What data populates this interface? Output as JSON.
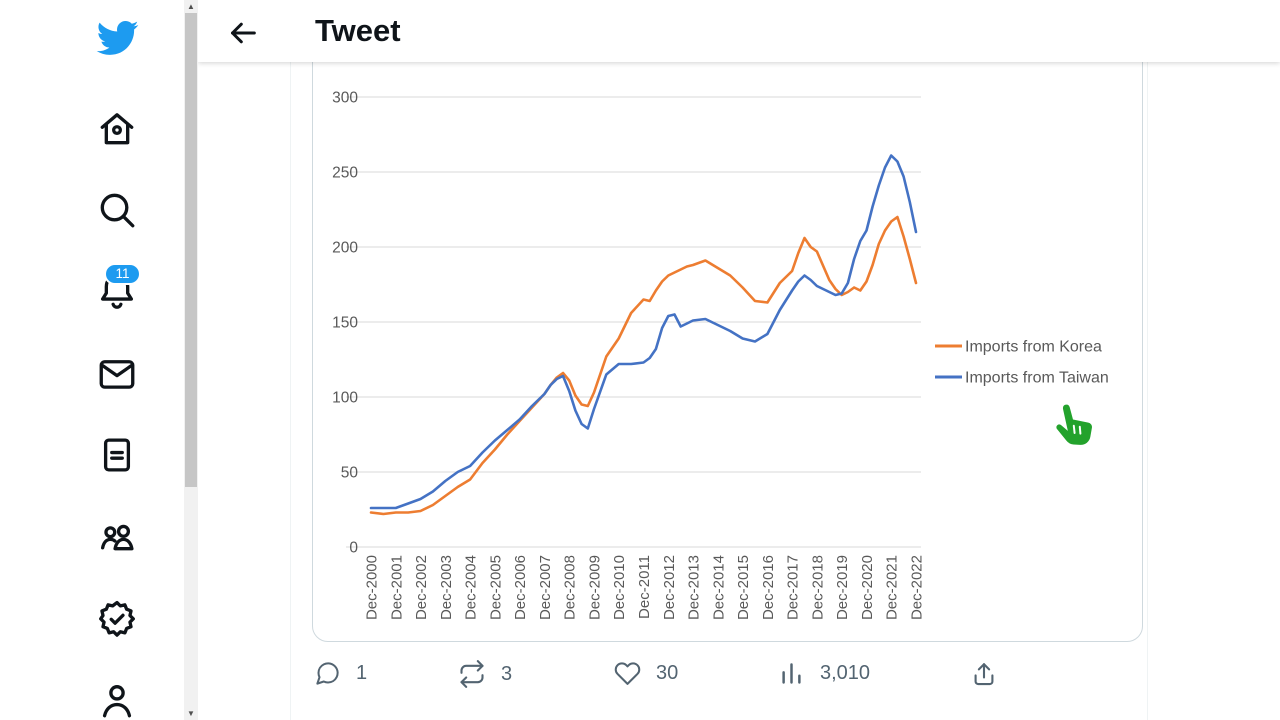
{
  "app": {
    "brand_icon": "twitter-bird-icon",
    "accent_color": "#1d9bf0"
  },
  "header": {
    "title": "Tweet",
    "back_icon": "left-arrow-icon"
  },
  "sidebar": {
    "notification_badge": "11",
    "items": [
      {
        "icon": "home-icon"
      },
      {
        "icon": "search-icon"
      },
      {
        "icon": "notifications-bell-icon"
      },
      {
        "icon": "messages-envelope-icon"
      },
      {
        "icon": "lists-icon"
      },
      {
        "icon": "communities-people-icon"
      },
      {
        "icon": "verified-badge-icon"
      },
      {
        "icon": "profile-person-icon"
      }
    ]
  },
  "tweet": {
    "media": {
      "type": "line-chart-image"
    },
    "engagement": {
      "replies": "1",
      "retweets": "3",
      "likes": "30",
      "views": "3,010"
    }
  },
  "cursor": {
    "type": "green-pointing-hand-cursor",
    "color": "#23A22C"
  },
  "chart_data": {
    "type": "line",
    "title": "",
    "xlabel": "",
    "ylabel": "",
    "ylim": [
      0,
      300
    ],
    "y_ticks": [
      0,
      50,
      100,
      150,
      200,
      250,
      300
    ],
    "grid": "horizontal",
    "legend_position": "right",
    "x_tick_interval_months": 12,
    "x_tick_labels": [
      "Dec-2000",
      "Dec-2001",
      "Dec-2002",
      "Dec-2003",
      "Dec-2004",
      "Dec-2005",
      "Dec-2006",
      "Dec-2007",
      "Dec-2008",
      "Dec-2009",
      "Dec-2010",
      "Dec-2011",
      "Dec-2012",
      "Dec-2013",
      "Dec-2014",
      "Dec-2015",
      "Dec-2016",
      "Dec-2017",
      "Dec-2018",
      "Dec-2019",
      "Dec-2020",
      "Dec-2021",
      "Dec-2022"
    ],
    "x_months": [
      0,
      6,
      12,
      18,
      24,
      30,
      36,
      42,
      48,
      54,
      60,
      66,
      72,
      78,
      84,
      87,
      90,
      93,
      96,
      99,
      102,
      105,
      108,
      114,
      120,
      126,
      132,
      135,
      138,
      141,
      144,
      147,
      150,
      153,
      156,
      162,
      168,
      174,
      180,
      186,
      192,
      198,
      204,
      207,
      210,
      213,
      216,
      222,
      225,
      228,
      231,
      234,
      237,
      240,
      243,
      246,
      249,
      252,
      255,
      258,
      261,
      264
    ],
    "series": [
      {
        "name": "Imports from Korea",
        "color": "#ED7D31",
        "values": [
          23,
          22,
          23,
          23,
          24,
          28,
          34,
          40,
          45,
          56,
          65,
          75,
          84,
          93,
          102,
          108,
          113,
          116,
          111,
          101,
          95,
          94,
          103,
          127,
          139,
          156,
          165,
          164,
          171,
          177,
          181,
          183,
          185,
          187,
          188,
          191,
          186,
          181,
          173,
          164,
          163,
          176,
          184,
          196,
          206,
          200,
          197,
          178,
          172,
          168,
          170,
          173,
          171,
          177,
          188,
          202,
          211,
          217,
          220,
          207,
          192,
          176
        ]
      },
      {
        "name": "Imports from Taiwan",
        "color": "#4472C4",
        "values": [
          26,
          26,
          26,
          29,
          32,
          37,
          44,
          50,
          54,
          63,
          71,
          78,
          85,
          94,
          102,
          108,
          112,
          114,
          104,
          91,
          82,
          79,
          92,
          115,
          122,
          122,
          123,
          126,
          132,
          146,
          154,
          155,
          147,
          149,
          151,
          152,
          148,
          144,
          139,
          137,
          142,
          158,
          171,
          177,
          181,
          178,
          174,
          170,
          168,
          169,
          176,
          192,
          204,
          211,
          227,
          241,
          253,
          261,
          257,
          247,
          230,
          210
        ]
      }
    ]
  }
}
